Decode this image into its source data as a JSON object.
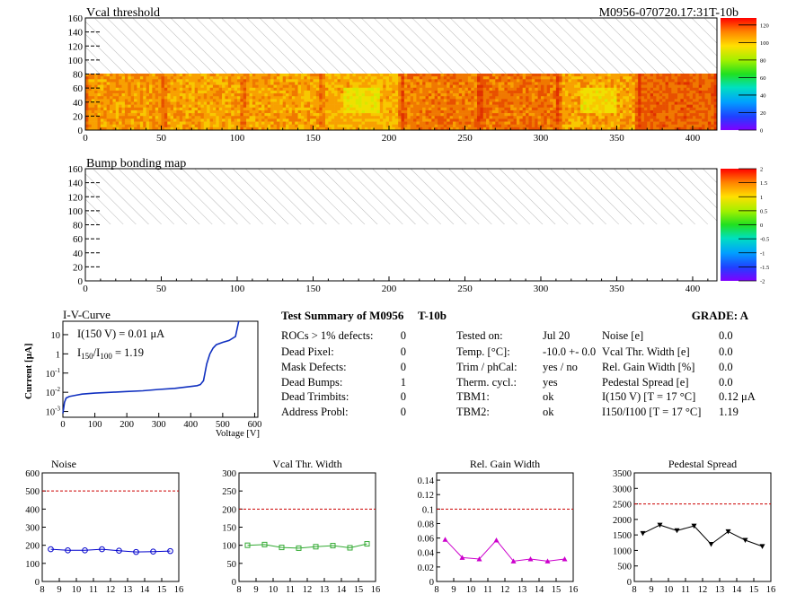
{
  "header": {
    "left_title": "Vcal threshold",
    "right_title": "M0956-070720.17:31T-10b"
  },
  "map1": {
    "title": "Vcal threshold",
    "x_ticks": [
      "0",
      "50",
      "100",
      "150",
      "200",
      "250",
      "300",
      "350",
      "400"
    ],
    "x_range": [
      0,
      416
    ],
    "y_ticks": [
      "0",
      "20",
      "40",
      "60",
      "80",
      "100",
      "120",
      "140",
      "160"
    ],
    "y_range": [
      0,
      160
    ],
    "filled_y_max": 80,
    "palette_ticks": [
      "0",
      "20",
      "40",
      "60",
      "80",
      "100",
      "120"
    ],
    "palette_range": [
      0,
      128
    ]
  },
  "map2": {
    "title": "Bump bonding map",
    "x_ticks": [
      "0",
      "50",
      "100",
      "150",
      "200",
      "250",
      "300",
      "350",
      "400"
    ],
    "x_range": [
      0,
      416
    ],
    "y_ticks": [
      "0",
      "20",
      "40",
      "60",
      "80",
      "100",
      "120",
      "140",
      "160"
    ],
    "y_range": [
      0,
      160
    ],
    "palette_ticks": [
      "-2",
      "-1.5",
      "-1",
      "-0.5",
      "0",
      "0.5",
      "1",
      "1.5",
      "2"
    ],
    "palette_range": [
      -2,
      2
    ]
  },
  "iv": {
    "title": "I-V-Curve",
    "ylabel": "Current [μA]",
    "xlabel": "Voltage [V]",
    "annot1": "I(150 V) = 0.01 μA",
    "annot2_main": "I",
    "annot2_sub1": "150",
    "annot2_slash": "/I",
    "annot2_sub2": "100",
    "annot2_val": " =  1.19",
    "x_ticks": [
      "0",
      "100",
      "200",
      "300",
      "400",
      "500",
      "600"
    ],
    "y_ticks": [
      "10^{-3}",
      "10^{-2}",
      "10^{-1}",
      "1",
      "10"
    ]
  },
  "summary": {
    "title": "Test Summary of M0956",
    "suffix": "T-10b",
    "grade": "GRADE:  A",
    "col1": [
      {
        "label": "ROCs > 1% defects:",
        "value": "0"
      },
      {
        "label": "Dead Pixel:",
        "value": "0"
      },
      {
        "label": "Mask Defects:",
        "value": "0"
      },
      {
        "label": "Dead Bumps:",
        "value": "1"
      },
      {
        "label": "Dead Trimbits:",
        "value": "0"
      },
      {
        "label": "Address Probl:",
        "value": "0"
      }
    ],
    "col2": [
      {
        "label": "Tested on:",
        "value": "Jul 20"
      },
      {
        "label": "Temp. [°C]:",
        "value": "-10.0 +- 0.0"
      },
      {
        "label": "Trim / phCal:",
        "value": "yes / no"
      },
      {
        "label": "Therm. cycl.:",
        "value": "yes"
      },
      {
        "label": "TBM1:",
        "value": "ok"
      },
      {
        "label": "TBM2:",
        "value": "ok"
      }
    ],
    "col3": [
      {
        "label": "Noise [e]",
        "value": "0.0"
      },
      {
        "label": "Vcal Thr. Width [e]",
        "value": "0.0"
      },
      {
        "label": "Rel. Gain Width [%]",
        "value": "0.0"
      },
      {
        "label": "Pedestal Spread [e]",
        "value": "0.0"
      },
      {
        "label": "I(150 V) [T = 17 °C]",
        "value": "0.12 μA"
      },
      {
        "label": "I150/I100   [T = 17 °C]",
        "value": "1.19"
      }
    ]
  },
  "chart_data": [
    {
      "type": "heatmap",
      "title": "Vcal threshold",
      "x_range": [
        0,
        416
      ],
      "y_range": [
        0,
        160
      ],
      "z_range": [
        0,
        128
      ],
      "note_rows_filled": [
        0,
        80
      ]
    },
    {
      "type": "heatmap",
      "title": "Bump bonding map",
      "x_range": [
        0,
        416
      ],
      "y_range": [
        0,
        160
      ],
      "z_range": [
        -2,
        2
      ]
    },
    {
      "type": "line",
      "title": "I-V-Curve",
      "xlabel": "Voltage [V]",
      "ylabel": "Current [μA]",
      "xlim": [
        0,
        610
      ],
      "ylim": [
        0.0005,
        50
      ],
      "log_y": true,
      "x": [
        0,
        5,
        10,
        20,
        40,
        60,
        100,
        150,
        200,
        250,
        300,
        350,
        400,
        420,
        430,
        440,
        450,
        460,
        470,
        480,
        500,
        520,
        540,
        550
      ],
      "y": [
        0.0008,
        0.003,
        0.005,
        0.006,
        0.007,
        0.008,
        0.009,
        0.01,
        0.011,
        0.012,
        0.014,
        0.016,
        0.02,
        0.022,
        0.025,
        0.04,
        0.3,
        1.0,
        2.0,
        3.0,
        4.0,
        5.0,
        8.0,
        50
      ]
    },
    {
      "type": "line",
      "title": "Noise",
      "x": [
        8.5,
        9.5,
        10.5,
        11.5,
        12.5,
        13.5,
        14.5,
        15.5
      ],
      "series": [
        {
          "values": [
            178,
            172,
            172,
            178,
            170,
            163,
            165,
            168
          ]
        }
      ],
      "threshold": 500,
      "xlim": [
        8,
        16
      ],
      "ylim": [
        0,
        600
      ],
      "color": "#0000cc",
      "marker": "circle"
    },
    {
      "type": "line",
      "title": "Vcal Thr. Width",
      "x": [
        8.5,
        9.5,
        10.5,
        11.5,
        12.5,
        13.5,
        14.5,
        15.5
      ],
      "series": [
        {
          "values": [
            100,
            102,
            94,
            92,
            96,
            99,
            93,
            104
          ]
        }
      ],
      "threshold": 200,
      "xlim": [
        8,
        16
      ],
      "ylim": [
        0,
        300
      ],
      "color": "#33aa33",
      "marker": "square"
    },
    {
      "type": "line",
      "title": "Rel. Gain Width",
      "x": [
        8.5,
        9.5,
        10.5,
        11.5,
        12.5,
        13.5,
        14.5,
        15.5
      ],
      "series": [
        {
          "values": [
            0.058,
            0.033,
            0.031,
            0.057,
            0.028,
            0.031,
            0.028,
            0.031
          ]
        }
      ],
      "threshold": 0.1,
      "xlim": [
        8,
        16
      ],
      "ylim": [
        0,
        0.15
      ],
      "color": "#cc00cc",
      "marker": "triangle"
    },
    {
      "type": "line",
      "title": "Pedestal Spread",
      "x": [
        8.5,
        9.5,
        10.5,
        11.5,
        12.5,
        13.5,
        14.5,
        15.5
      ],
      "series": [
        {
          "values": [
            1550,
            1820,
            1640,
            1790,
            1200,
            1610,
            1330,
            1130
          ]
        }
      ],
      "threshold": 2500,
      "xlim": [
        8,
        16
      ],
      "ylim": [
        0,
        3500
      ],
      "color": "#000000",
      "marker": "triangle-down"
    }
  ],
  "small_charts_ticks": {
    "x_ticks": [
      "8",
      "9",
      "10",
      "11",
      "12",
      "13",
      "14",
      "15",
      "16"
    ],
    "noise_y": [
      "0",
      "100",
      "200",
      "300",
      "400",
      "500",
      "600"
    ],
    "vcal_y": [
      "0",
      "50",
      "100",
      "150",
      "200",
      "250",
      "300"
    ],
    "gain_y": [
      "0",
      "0.02",
      "0.04",
      "0.06",
      "0.08",
      "0.1",
      "0.12",
      "0.14"
    ],
    "ped_y": [
      "0",
      "500",
      "1000",
      "1500",
      "2000",
      "2500",
      "3000",
      "3500"
    ]
  },
  "colors": {
    "threshold_line": "#cc0000",
    "hatch": "#b8b8b8"
  }
}
